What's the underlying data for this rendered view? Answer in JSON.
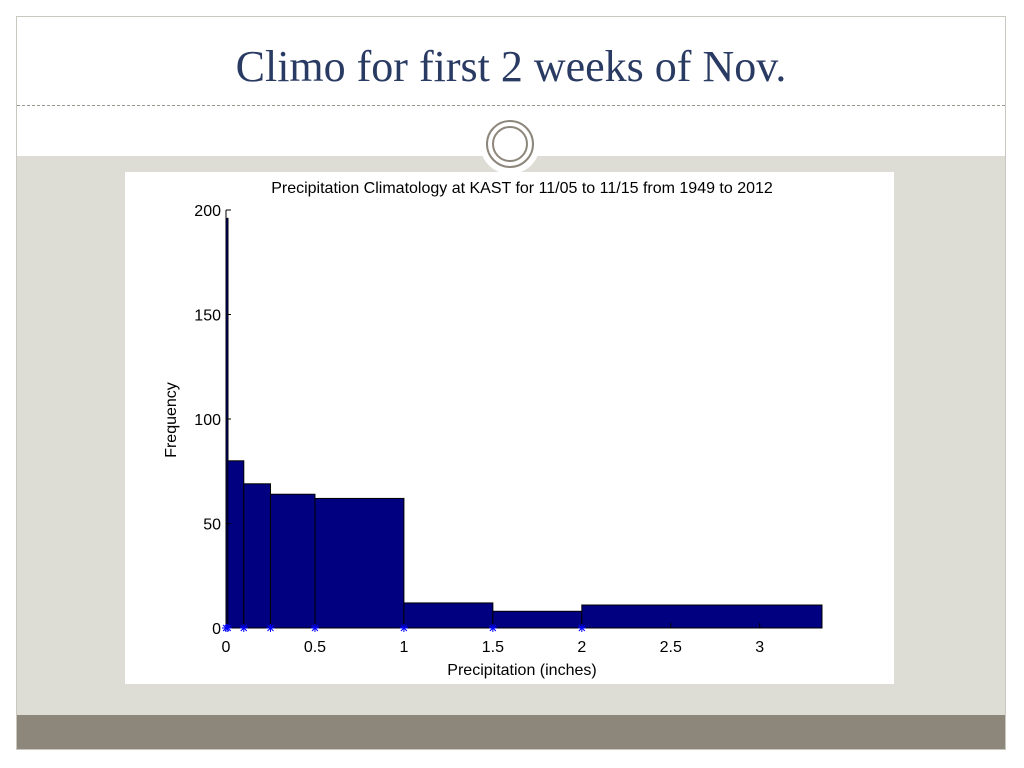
{
  "slide": {
    "title": "Climo for first 2 weeks of Nov."
  },
  "decor": {
    "ornament_icon": "concentric-circle-icon",
    "accent_color": "#8d877b",
    "title_color": "#2a3b63",
    "content_bg_color": "#dddcd5"
  },
  "chart_data": {
    "type": "bar",
    "title": "Precipitation Climatology at KAST for 11/05 to 11/15 from 1949 to 2012",
    "xlabel": "Precipitation (inches)",
    "ylabel": "Frequency",
    "xlim": [
      0,
      3.35
    ],
    "ylim": [
      0,
      200
    ],
    "xticks": [
      0,
      0.5,
      1,
      1.5,
      2,
      2.5,
      3
    ],
    "xtick_labels": [
      "0",
      "0.5",
      "1",
      "1.5",
      "2",
      "2.5",
      "3"
    ],
    "yticks": [
      0,
      50,
      100,
      150,
      200
    ],
    "ytick_labels": [
      "0",
      "50",
      "100",
      "150",
      "200"
    ],
    "bar_color": "#000080",
    "marker_color": "#0000ff",
    "grid": false,
    "bins": [
      {
        "x0": 0,
        "x1": 0.01,
        "value": 196
      },
      {
        "x0": 0.01,
        "x1": 0.1,
        "value": 80
      },
      {
        "x0": 0.1,
        "x1": 0.25,
        "value": 69
      },
      {
        "x0": 0.25,
        "x1": 0.5,
        "value": 64
      },
      {
        "x0": 0.5,
        "x1": 1.0,
        "value": 62
      },
      {
        "x0": 1.0,
        "x1": 1.5,
        "value": 12
      },
      {
        "x0": 1.5,
        "x1": 2.0,
        "value": 8
      },
      {
        "x0": 2.0,
        "x1": 3.35,
        "value": 11
      }
    ],
    "edge_markers": [
      0,
      0.01,
      0.1,
      0.25,
      0.5,
      1.0,
      1.5,
      2.0
    ]
  }
}
